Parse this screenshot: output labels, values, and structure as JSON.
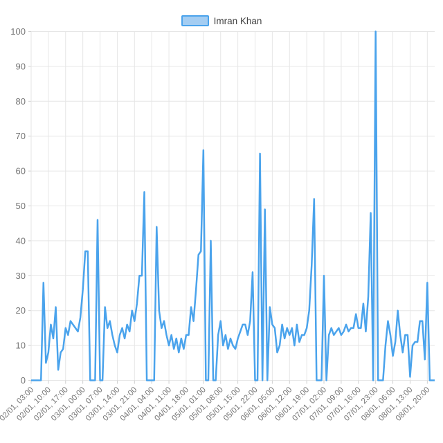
{
  "legend": {
    "label": "Imran Khan"
  },
  "colors": {
    "line": "#4aa3ec",
    "legend_fill": "#a4cdf2",
    "grid": "#e6e6e6",
    "tick": "#cfcfcf",
    "axis_text": "#757575",
    "legend_text": "#424242",
    "background": "#ffffff"
  },
  "chart_data": {
    "type": "line",
    "title": "",
    "xlabel": "",
    "ylabel": "",
    "series_name": "Imran Khan",
    "legend_position": "top-center",
    "grid": true,
    "ylim": [
      0,
      100
    ],
    "y_ticks": [
      0,
      10,
      20,
      30,
      40,
      50,
      60,
      70,
      80,
      90,
      100
    ],
    "x_start": "02/01, 03:00",
    "x_interval": "1 hour",
    "x_tick_every_points": 7,
    "x_tick_labels": [
      "02/01, 03:00",
      "02/01, 10:00",
      "02/01, 17:00",
      "03/01, 00:00",
      "03/01, 07:00",
      "03/01, 14:00",
      "03/01, 21:00",
      "04/01, 04:00",
      "04/01, 11:00",
      "04/01, 18:00",
      "05/01, 01:00",
      "05/01, 08:00",
      "05/01, 15:00",
      "05/01, 22:00",
      "06/01, 05:00",
      "06/01, 12:00",
      "06/01, 19:00",
      "07/01, 02:00",
      "07/01, 09:00",
      "07/01, 16:00",
      "07/01, 23:00",
      "08/01, 06:00",
      "08/01, 13:00",
      "08/01, 20:00"
    ],
    "values": [
      0,
      0,
      0,
      0,
      0,
      28,
      5,
      8,
      16,
      12,
      21,
      3,
      8,
      9,
      15,
      13,
      17,
      16,
      15,
      14,
      18,
      26,
      37,
      37,
      0,
      0,
      0,
      46,
      0,
      0,
      21,
      15,
      17,
      13,
      10,
      8,
      13,
      15,
      12,
      16,
      14,
      20,
      17,
      22,
      30,
      30,
      54,
      0,
      0,
      0,
      0,
      44,
      20,
      15,
      17,
      13,
      10,
      13,
      9,
      12,
      8,
      12,
      9,
      13,
      13,
      21,
      17,
      26,
      36,
      37,
      66,
      0,
      0,
      40,
      0,
      0,
      13,
      17,
      10,
      13,
      9,
      12,
      10,
      9,
      12,
      14,
      16,
      16,
      13,
      17,
      31,
      0,
      0,
      65,
      0,
      49,
      0,
      21,
      16,
      15,
      8,
      10,
      16,
      12,
      15,
      13,
      15,
      10,
      16,
      11,
      13,
      13,
      15,
      20,
      33,
      52,
      0,
      0,
      0,
      30,
      0,
      13,
      15,
      13,
      14,
      15,
      13,
      14,
      16,
      14,
      15,
      15,
      19,
      15,
      15,
      22,
      14,
      24,
      48,
      0,
      100,
      0,
      0,
      0,
      10,
      17,
      13,
      7,
      11,
      20,
      13,
      8,
      13,
      13,
      1,
      10,
      11,
      11,
      17,
      17,
      6,
      28,
      0,
      0,
      0
    ]
  }
}
